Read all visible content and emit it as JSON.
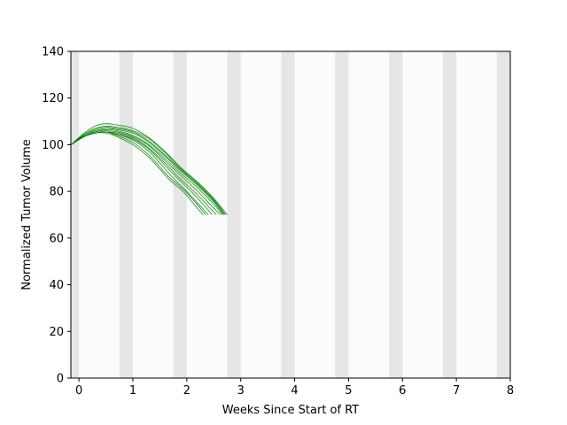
{
  "chart_data": {
    "type": "line",
    "title": "",
    "xlabel": "Weeks Since Start of RT",
    "ylabel": "Normalized Tumor Volume",
    "xlim": [
      -0.15,
      8
    ],
    "ylim": [
      0,
      140
    ],
    "xticks": [
      0,
      1,
      2,
      3,
      4,
      5,
      6,
      7,
      8
    ],
    "yticks": [
      0,
      20,
      40,
      60,
      80,
      100,
      120,
      140
    ],
    "xtick_labels": [
      "0",
      "1",
      "2",
      "3",
      "4",
      "5",
      "6",
      "7",
      "8"
    ],
    "ytick_labels": [
      "0",
      "20",
      "40",
      "60",
      "80",
      "100",
      "120",
      "140"
    ],
    "grid": false,
    "legend": "none",
    "line_color": "#008000",
    "band_color": "#e6e6e6",
    "background_band_color": "#fbfbfb",
    "shaded_periods": [
      [
        -0.15,
        0.0
      ],
      [
        0.75,
        1.0
      ],
      [
        1.75,
        2.0
      ],
      [
        2.75,
        3.0
      ],
      [
        3.75,
        4.0
      ],
      [
        4.75,
        5.0
      ],
      [
        5.75,
        6.0
      ],
      [
        6.75,
        7.0
      ],
      [
        7.75,
        8.0
      ]
    ],
    "series": [
      {
        "x": [
          -0.15,
          0.1,
          0.3,
          0.5,
          0.7,
          1.0,
          1.3,
          1.6,
          1.9,
          2.2,
          2.5,
          2.75
        ],
        "values": [
          100,
          105,
          108,
          109,
          108.5,
          107,
          103,
          97,
          90,
          84,
          77,
          70
        ]
      },
      {
        "x": [
          -0.15,
          0.1,
          0.3,
          0.5,
          0.7,
          1.0,
          1.3,
          1.6,
          1.9,
          2.2,
          2.5,
          2.72
        ],
        "values": [
          100,
          104.5,
          107,
          108,
          107.5,
          106,
          102.5,
          96.5,
          89.5,
          83.5,
          76.5,
          70
        ]
      },
      {
        "x": [
          -0.15,
          0.1,
          0.3,
          0.5,
          0.7,
          1.0,
          1.3,
          1.6,
          1.9,
          2.2,
          2.5,
          2.7
        ],
        "values": [
          100,
          104,
          106.5,
          107.5,
          107,
          105.5,
          101.5,
          95.5,
          89,
          83,
          76,
          70
        ]
      },
      {
        "x": [
          -0.15,
          0.1,
          0.3,
          0.5,
          0.7,
          1.0,
          1.3,
          1.6,
          1.9,
          2.2,
          2.5,
          2.68
        ],
        "values": [
          100,
          104,
          106,
          107,
          106.5,
          105,
          101,
          95,
          88.5,
          82.5,
          75.5,
          70
        ]
      },
      {
        "x": [
          -0.15,
          0.1,
          0.3,
          0.5,
          0.7,
          1.0,
          1.3,
          1.6,
          1.9,
          2.2,
          2.5,
          2.66
        ],
        "values": [
          100,
          103.5,
          105.5,
          106.5,
          106,
          104,
          100,
          94,
          87.5,
          81.5,
          74.5,
          70
        ]
      },
      {
        "x": [
          -0.15,
          0.1,
          0.3,
          0.5,
          0.7,
          1.0,
          1.3,
          1.6,
          1.9,
          2.2,
          2.45,
          2.62
        ],
        "values": [
          100,
          103.5,
          105.5,
          106,
          105.5,
          103.5,
          99.5,
          93,
          86.5,
          80,
          74,
          70
        ]
      },
      {
        "x": [
          -0.15,
          0.1,
          0.3,
          0.5,
          0.7,
          1.0,
          1.3,
          1.6,
          1.9,
          2.2,
          2.4,
          2.55
        ],
        "values": [
          100,
          103.5,
          105,
          105.5,
          105,
          103,
          98.5,
          92,
          85,
          78.5,
          73.5,
          70
        ]
      },
      {
        "x": [
          -0.15,
          0.1,
          0.3,
          0.5,
          0.7,
          1.0,
          1.3,
          1.6,
          1.9,
          2.1,
          2.3,
          2.47
        ],
        "values": [
          100,
          103.5,
          105,
          105.5,
          104.5,
          102.5,
          98,
          91,
          84,
          79.5,
          74.5,
          70
        ]
      },
      {
        "x": [
          -0.15,
          0.1,
          0.3,
          0.5,
          0.7,
          1.0,
          1.3,
          1.6,
          1.8,
          2.0,
          2.2,
          2.4
        ],
        "values": [
          100,
          103.5,
          105,
          105.5,
          104.5,
          102,
          97,
          89.5,
          84.5,
          80,
          75,
          70
        ]
      },
      {
        "x": [
          -0.15,
          0.1,
          0.3,
          0.5,
          0.7,
          1.0,
          1.3,
          1.5,
          1.7,
          1.95,
          2.15,
          2.35
        ],
        "values": [
          100,
          103.5,
          105,
          105.5,
          104,
          101,
          95.5,
          90.5,
          85.5,
          80.5,
          75.5,
          70
        ]
      },
      {
        "x": [
          -0.15,
          0.1,
          0.3,
          0.5,
          0.7,
          1.0,
          1.3,
          1.5,
          1.7,
          1.95,
          2.15,
          2.3
        ],
        "values": [
          100,
          103.5,
          105,
          105,
          103.5,
          100,
          94.5,
          89.5,
          84.5,
          79.5,
          74,
          70
        ]
      }
    ]
  }
}
